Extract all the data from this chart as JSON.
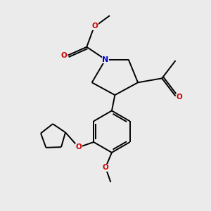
{
  "bg_color": "#ebebeb",
  "bond_color": "#000000",
  "N_color": "#0000cc",
  "O_color": "#cc0000",
  "lw": 1.4,
  "fs": 7.5,
  "xlim": [
    0,
    10
  ],
  "ylim": [
    0,
    10
  ]
}
